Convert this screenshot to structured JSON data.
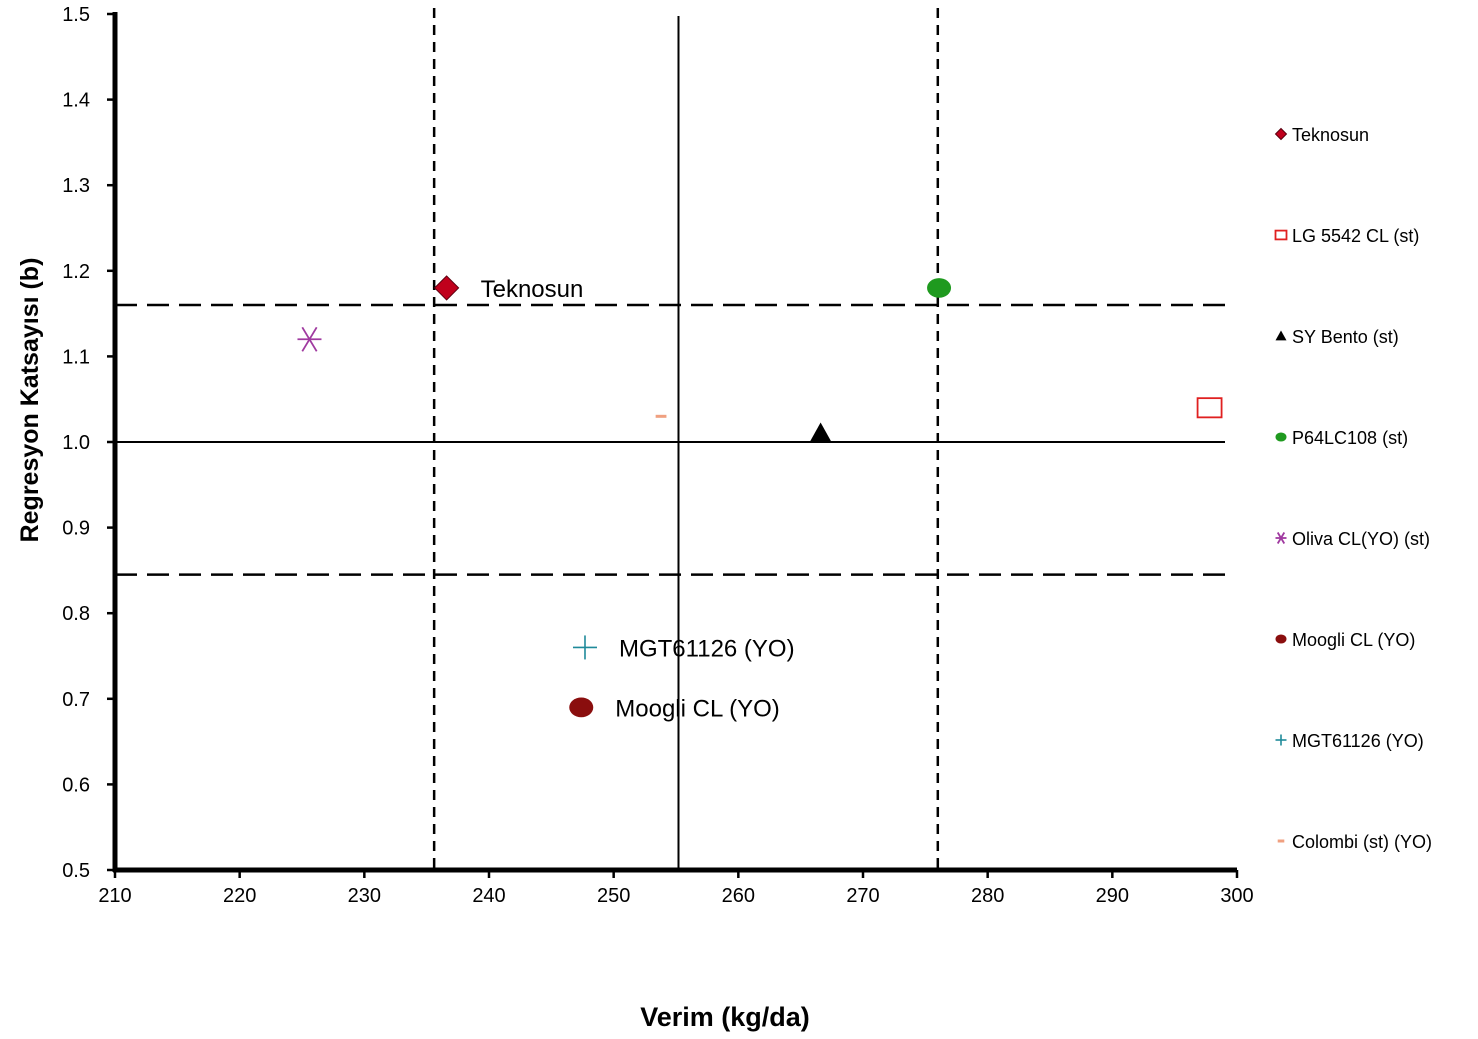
{
  "chart_data": {
    "type": "scatter",
    "xlabel": "Verim (kg/da)",
    "ylabel": "Regresyon Katsayısı (b)",
    "xlim": [
      210,
      300
    ],
    "ylim": [
      0.5,
      1.5
    ],
    "xticks": [
      "210",
      "220",
      "230",
      "240",
      "250",
      "260",
      "270",
      "280",
      "290",
      "300"
    ],
    "yticks": [
      "0.5",
      "0.6",
      "0.7",
      "0.8",
      "0.9",
      "1.0",
      "1.1",
      "1.2",
      "1.3",
      "1.4",
      "1.5"
    ],
    "grid": false,
    "legend_position": "right",
    "reference_lines": {
      "vertical_solid": 255.2,
      "vertical_dashed": [
        235.6,
        276.0
      ],
      "horizontal_solid": 1.0,
      "horizontal_dashed": [
        1.16,
        0.845
      ]
    },
    "series": [
      {
        "name": "Teknosun",
        "x": 236.6,
        "y": 1.18,
        "marker": "diamond",
        "color": "#c0001c",
        "label": "Teknosun"
      },
      {
        "name": "LG 5542 CL (st)",
        "x": 297.8,
        "y": 1.04,
        "marker": "square-open",
        "color": "#e02020",
        "label": ""
      },
      {
        "name": "SY Bento (st)",
        "x": 266.6,
        "y": 1.01,
        "marker": "triangle",
        "color": "#000000",
        "label": ""
      },
      {
        "name": "P64LC108 (st)",
        "x": 276.1,
        "y": 1.18,
        "marker": "circle",
        "color": "#1f9a1f",
        "label": ""
      },
      {
        "name": "Oliva CL(YO) (st)",
        "x": 225.6,
        "y": 1.12,
        "marker": "star",
        "color": "#a03aa0",
        "label": ""
      },
      {
        "name": "Moogli CL (YO)",
        "x": 247.4,
        "y": 0.69,
        "marker": "circle",
        "color": "#8a0e0e",
        "label": "Moogli CL (YO)"
      },
      {
        "name": "MGT61126 (YO)",
        "x": 247.7,
        "y": 0.76,
        "marker": "plus",
        "color": "#1f8a9a",
        "label": "MGT61126 (YO)"
      },
      {
        "name": "Colombi (st) (YO)",
        "x": 253.8,
        "y": 1.03,
        "marker": "dash",
        "color": "#f0a080",
        "label": ""
      }
    ]
  }
}
